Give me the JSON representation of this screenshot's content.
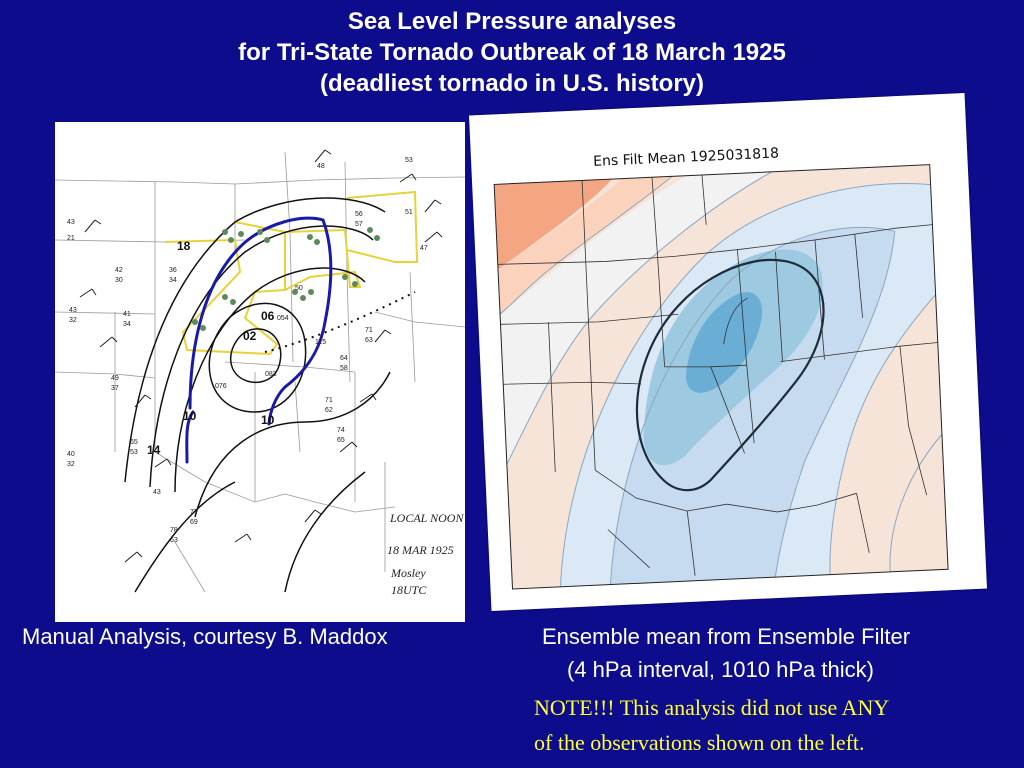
{
  "title": {
    "line1": "Sea Level Pressure analyses",
    "line2": "for Tri-State Tornado Outbreak of 18 March 1925",
    "line3": "(deadliest tornado in U.S. history)"
  },
  "left_panel": {
    "caption": "Manual Analysis, courtesy B. Maddox",
    "annotation_lines": [
      "LOCAL NOON",
      "18 MAR 1925",
      "Mosley",
      "18UTC"
    ],
    "isobar_labels": [
      "18",
      "14",
      "10",
      "06",
      "02",
      "10"
    ],
    "station_values": [
      "43",
      "21",
      "42",
      "30",
      "43",
      "32",
      "41",
      "34",
      "49",
      "37",
      "40",
      "32",
      "36",
      "34",
      "56",
      "57",
      "48",
      "50",
      "53",
      "51",
      "47",
      "71",
      "63",
      "64",
      "58",
      "71",
      "62",
      "74",
      "65",
      "77",
      "69",
      "78",
      "63",
      "65",
      "53",
      "43",
      "076",
      "083",
      "115",
      "054"
    ]
  },
  "right_panel": {
    "map_title": "Ens Filt Mean 1925031818",
    "caption_line1": "Ensemble mean from Ensemble Filter",
    "caption_line2": "(4 hPa interval, 1010 hPa thick)"
  },
  "note": {
    "line1": "NOTE!!! This analysis did not use ANY",
    "line2": "of the observations shown on the left."
  },
  "colors": {
    "background": "#0c0c8c",
    "title_text": "#ffffff",
    "note_text": "#ffff33",
    "low_pressure_fill": "#6aaed6",
    "high_pressure_fill": "#f4a582",
    "hand_isobar": "#000000",
    "front_line": "#1a1aa8",
    "state_outline_highlight": "#e8d23a"
  }
}
